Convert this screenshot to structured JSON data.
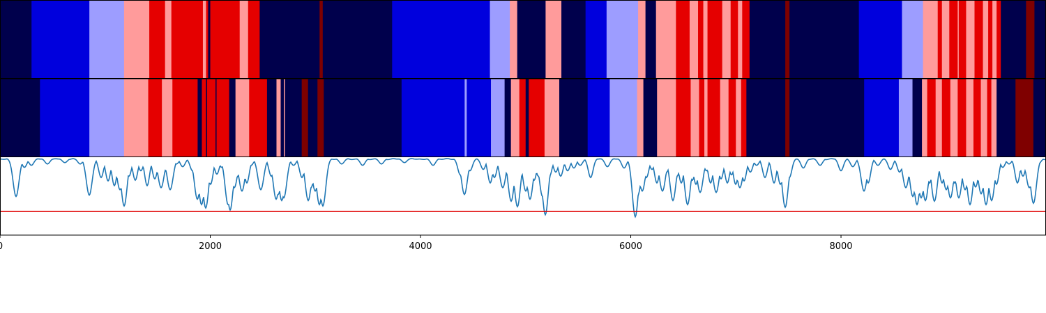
{
  "chart_data": [
    {
      "type": "heatmap",
      "panel": "segmentation-top",
      "xlim": [
        0,
        9950
      ],
      "palette": {
        "0": "#00004c",
        "1": "#0000dd",
        "2": "#9d9dff",
        "3": "#ff9b9b",
        "4": "#e50000",
        "5": "#7f0000"
      },
      "segments": [
        [
          0,
          300,
          0
        ],
        [
          300,
          850,
          1
        ],
        [
          850,
          1180,
          2
        ],
        [
          1180,
          1420,
          3
        ],
        [
          1420,
          1570,
          4
        ],
        [
          1570,
          1630,
          3
        ],
        [
          1630,
          1930,
          4
        ],
        [
          1930,
          1960,
          3
        ],
        [
          1960,
          1980,
          4
        ],
        [
          1980,
          2000,
          0
        ],
        [
          2000,
          2280,
          4
        ],
        [
          2280,
          2360,
          3
        ],
        [
          2360,
          2470,
          4
        ],
        [
          2470,
          3040,
          0
        ],
        [
          3040,
          3070,
          5
        ],
        [
          3070,
          3730,
          0
        ],
        [
          3730,
          4660,
          1
        ],
        [
          4660,
          4850,
          2
        ],
        [
          4850,
          4920,
          3
        ],
        [
          4920,
          5190,
          0
        ],
        [
          5190,
          5340,
          3
        ],
        [
          5340,
          5570,
          0
        ],
        [
          5570,
          5770,
          1
        ],
        [
          5770,
          6070,
          2
        ],
        [
          6070,
          6140,
          3
        ],
        [
          6140,
          6240,
          0
        ],
        [
          6240,
          6430,
          3
        ],
        [
          6430,
          6560,
          4
        ],
        [
          6560,
          6640,
          3
        ],
        [
          6640,
          6690,
          4
        ],
        [
          6690,
          6730,
          3
        ],
        [
          6730,
          6870,
          4
        ],
        [
          6870,
          6950,
          3
        ],
        [
          6950,
          7020,
          4
        ],
        [
          7020,
          7060,
          3
        ],
        [
          7060,
          7130,
          4
        ],
        [
          7130,
          7470,
          0
        ],
        [
          7470,
          7510,
          5
        ],
        [
          7510,
          8170,
          0
        ],
        [
          8170,
          8580,
          1
        ],
        [
          8580,
          8780,
          2
        ],
        [
          8780,
          8920,
          3
        ],
        [
          8920,
          8960,
          4
        ],
        [
          8960,
          9030,
          3
        ],
        [
          9030,
          9110,
          4
        ],
        [
          9110,
          9120,
          3
        ],
        [
          9120,
          9190,
          4
        ],
        [
          9190,
          9270,
          3
        ],
        [
          9270,
          9350,
          4
        ],
        [
          9350,
          9400,
          3
        ],
        [
          9400,
          9440,
          4
        ],
        [
          9440,
          9480,
          3
        ],
        [
          9480,
          9520,
          4
        ],
        [
          9520,
          9760,
          0
        ],
        [
          9760,
          9840,
          5
        ],
        [
          9840,
          9950,
          0
        ]
      ]
    },
    {
      "type": "heatmap",
      "panel": "segmentation-middle",
      "xlim": [
        0,
        9950
      ],
      "segments": [
        [
          0,
          380,
          0
        ],
        [
          380,
          850,
          1
        ],
        [
          850,
          1180,
          2
        ],
        [
          1180,
          1410,
          3
        ],
        [
          1410,
          1540,
          4
        ],
        [
          1540,
          1640,
          3
        ],
        [
          1640,
          1880,
          4
        ],
        [
          1880,
          1920,
          0
        ],
        [
          1920,
          1960,
          4
        ],
        [
          1960,
          1970,
          0
        ],
        [
          1970,
          2050,
          4
        ],
        [
          2050,
          2060,
          0
        ],
        [
          2060,
          2180,
          4
        ],
        [
          2180,
          2190,
          0
        ],
        [
          2190,
          2240,
          0
        ],
        [
          2240,
          2370,
          3
        ],
        [
          2370,
          2540,
          4
        ],
        [
          2540,
          2630,
          0
        ],
        [
          2630,
          2670,
          3
        ],
        [
          2670,
          2700,
          0
        ],
        [
          2700,
          2710,
          3
        ],
        [
          2710,
          2870,
          0
        ],
        [
          2870,
          2930,
          5
        ],
        [
          2930,
          3020,
          0
        ],
        [
          3020,
          3080,
          5
        ],
        [
          3080,
          3820,
          0
        ],
        [
          3820,
          4420,
          1
        ],
        [
          4420,
          4440,
          2
        ],
        [
          4440,
          4670,
          1
        ],
        [
          4670,
          4800,
          2
        ],
        [
          4800,
          4860,
          0
        ],
        [
          4860,
          4940,
          3
        ],
        [
          4940,
          5000,
          4
        ],
        [
          5000,
          5030,
          0
        ],
        [
          5030,
          5180,
          4
        ],
        [
          5180,
          5320,
          3
        ],
        [
          5320,
          5590,
          0
        ],
        [
          5590,
          5800,
          1
        ],
        [
          5800,
          6060,
          2
        ],
        [
          6060,
          6120,
          3
        ],
        [
          6120,
          6250,
          0
        ],
        [
          6250,
          6430,
          3
        ],
        [
          6430,
          6570,
          4
        ],
        [
          6570,
          6650,
          3
        ],
        [
          6650,
          6700,
          4
        ],
        [
          6700,
          6730,
          3
        ],
        [
          6730,
          6850,
          4
        ],
        [
          6850,
          6930,
          3
        ],
        [
          6930,
          7000,
          4
        ],
        [
          7000,
          7050,
          3
        ],
        [
          7050,
          7100,
          4
        ],
        [
          7100,
          7470,
          0
        ],
        [
          7470,
          7510,
          5
        ],
        [
          7510,
          8220,
          0
        ],
        [
          8220,
          8550,
          1
        ],
        [
          8550,
          8680,
          2
        ],
        [
          8680,
          8770,
          0
        ],
        [
          8770,
          8820,
          3
        ],
        [
          8820,
          8900,
          4
        ],
        [
          8900,
          8960,
          3
        ],
        [
          8960,
          9040,
          4
        ],
        [
          9040,
          9110,
          3
        ],
        [
          9110,
          9190,
          4
        ],
        [
          9190,
          9260,
          3
        ],
        [
          9260,
          9330,
          4
        ],
        [
          9330,
          9390,
          3
        ],
        [
          9390,
          9430,
          4
        ],
        [
          9430,
          9480,
          3
        ],
        [
          9480,
          9660,
          0
        ],
        [
          9660,
          9830,
          5
        ],
        [
          9830,
          9950,
          0
        ]
      ]
    },
    {
      "type": "line",
      "panel": "trace-bottom",
      "xlim": [
        0,
        9950
      ],
      "ylim": [
        -0.15,
        1.0
      ],
      "threshold": 0.2,
      "threshold_color": "#e00000",
      "line_color": "#1f77b4",
      "baseline": 0.98,
      "xticks": [
        0,
        2000,
        4000,
        6000,
        8000
      ],
      "xtick_labels": [
        "0",
        "2000",
        "4000",
        "6000",
        "8000"
      ],
      "dips": [
        [
          150,
          0.42
        ],
        [
          230,
          0.85
        ],
        [
          300,
          0.88
        ],
        [
          450,
          0.9
        ],
        [
          620,
          0.92
        ],
        [
          760,
          0.9
        ],
        [
          850,
          0.44
        ],
        [
          960,
          0.7
        ],
        [
          1030,
          0.65
        ],
        [
          1090,
          0.58
        ],
        [
          1140,
          0.52
        ],
        [
          1180,
          0.28
        ],
        [
          1230,
          0.72
        ],
        [
          1290,
          0.66
        ],
        [
          1340,
          0.8
        ],
        [
          1400,
          0.58
        ],
        [
          1470,
          0.68
        ],
        [
          1530,
          0.55
        ],
        [
          1580,
          0.8
        ],
        [
          1620,
          0.52
        ],
        [
          1680,
          0.9
        ],
        [
          1740,
          0.86
        ],
        [
          1830,
          0.8
        ],
        [
          1880,
          0.38
        ],
        [
          1920,
          0.3
        ],
        [
          1960,
          0.25
        ],
        [
          2000,
          0.6
        ],
        [
          2060,
          0.75
        ],
        [
          2110,
          0.85
        ],
        [
          2170,
          0.3
        ],
        [
          2190,
          0.22
        ],
        [
          2230,
          0.55
        ],
        [
          2260,
          0.72
        ],
        [
          2300,
          0.5
        ],
        [
          2350,
          0.62
        ],
        [
          2390,
          0.88
        ],
        [
          2480,
          0.52
        ],
        [
          2580,
          0.72
        ],
        [
          2630,
          0.38
        ],
        [
          2650,
          0.45
        ],
        [
          2680,
          0.36
        ],
        [
          2700,
          0.4
        ],
        [
          2790,
          0.88
        ],
        [
          2870,
          0.7
        ],
        [
          2930,
          0.36
        ],
        [
          2960,
          0.55
        ],
        [
          3000,
          0.5
        ],
        [
          3040,
          0.3
        ],
        [
          3070,
          0.28
        ],
        [
          3250,
          0.9
        ],
        [
          3450,
          0.88
        ],
        [
          3630,
          0.9
        ],
        [
          3850,
          0.92
        ],
        [
          4120,
          0.88
        ],
        [
          4380,
          0.74
        ],
        [
          4420,
          0.45
        ],
        [
          4470,
          0.8
        ],
        [
          4600,
          0.82
        ],
        [
          4660,
          0.62
        ],
        [
          4700,
          0.7
        ],
        [
          4780,
          0.55
        ],
        [
          4860,
          0.35
        ],
        [
          4920,
          0.27
        ],
        [
          4960,
          0.78
        ],
        [
          5000,
          0.5
        ],
        [
          5040,
          0.38
        ],
        [
          5080,
          0.66
        ],
        [
          5120,
          0.72
        ],
        [
          5160,
          0.42
        ],
        [
          5190,
          0.15
        ],
        [
          5230,
          0.72
        ],
        [
          5290,
          0.78
        ],
        [
          5330,
          0.72
        ],
        [
          5400,
          0.8
        ],
        [
          5460,
          0.84
        ],
        [
          5520,
          0.88
        ],
        [
          5620,
          0.7
        ],
        [
          5780,
          0.86
        ],
        [
          5940,
          0.84
        ],
        [
          6040,
          0.12
        ],
        [
          6070,
          0.45
        ],
        [
          6110,
          0.5
        ],
        [
          6150,
          0.7
        ],
        [
          6200,
          0.82
        ],
        [
          6250,
          0.62
        ],
        [
          6300,
          0.5
        ],
        [
          6340,
          0.78
        ],
        [
          6400,
          0.36
        ],
        [
          6440,
          0.72
        ],
        [
          6480,
          0.62
        ],
        [
          6540,
          0.3
        ],
        [
          6590,
          0.66
        ],
        [
          6620,
          0.6
        ],
        [
          6660,
          0.48
        ],
        [
          6720,
          0.8
        ],
        [
          6760,
          0.62
        ],
        [
          6810,
          0.48
        ],
        [
          6860,
          0.68
        ],
        [
          6920,
          0.62
        ],
        [
          6960,
          0.74
        ],
        [
          7000,
          0.6
        ],
        [
          7040,
          0.55
        ],
        [
          7080,
          0.65
        ],
        [
          7140,
          0.78
        ],
        [
          7200,
          0.88
        ],
        [
          7280,
          0.7
        ],
        [
          7360,
          0.62
        ],
        [
          7420,
          0.6
        ],
        [
          7470,
          0.26
        ],
        [
          7510,
          0.7
        ],
        [
          7640,
          0.84
        ],
        [
          7800,
          0.88
        ],
        [
          8000,
          0.8
        ],
        [
          8110,
          0.86
        ],
        [
          8220,
          0.5
        ],
        [
          8260,
          0.62
        ],
        [
          8350,
          0.88
        ],
        [
          8470,
          0.82
        ],
        [
          8560,
          0.78
        ],
        [
          8620,
          0.55
        ],
        [
          8680,
          0.42
        ],
        [
          8720,
          0.3
        ],
        [
          8760,
          0.4
        ],
        [
          8800,
          0.36
        ],
        [
          8840,
          0.62
        ],
        [
          8890,
          0.35
        ],
        [
          8920,
          0.9
        ],
        [
          8960,
          0.62
        ],
        [
          9000,
          0.52
        ],
        [
          9040,
          0.4
        ],
        [
          9080,
          0.62
        ],
        [
          9120,
          0.4
        ],
        [
          9180,
          0.52
        ],
        [
          9230,
          0.3
        ],
        [
          9280,
          0.56
        ],
        [
          9330,
          0.46
        ],
        [
          9380,
          0.3
        ],
        [
          9430,
          0.36
        ],
        [
          9480,
          0.6
        ],
        [
          9540,
          0.85
        ],
        [
          9600,
          0.9
        ],
        [
          9680,
          0.62
        ],
        [
          9730,
          0.72
        ],
        [
          9790,
          0.55
        ],
        [
          9830,
          0.32
        ],
        [
          9880,
          0.9
        ]
      ]
    }
  ]
}
